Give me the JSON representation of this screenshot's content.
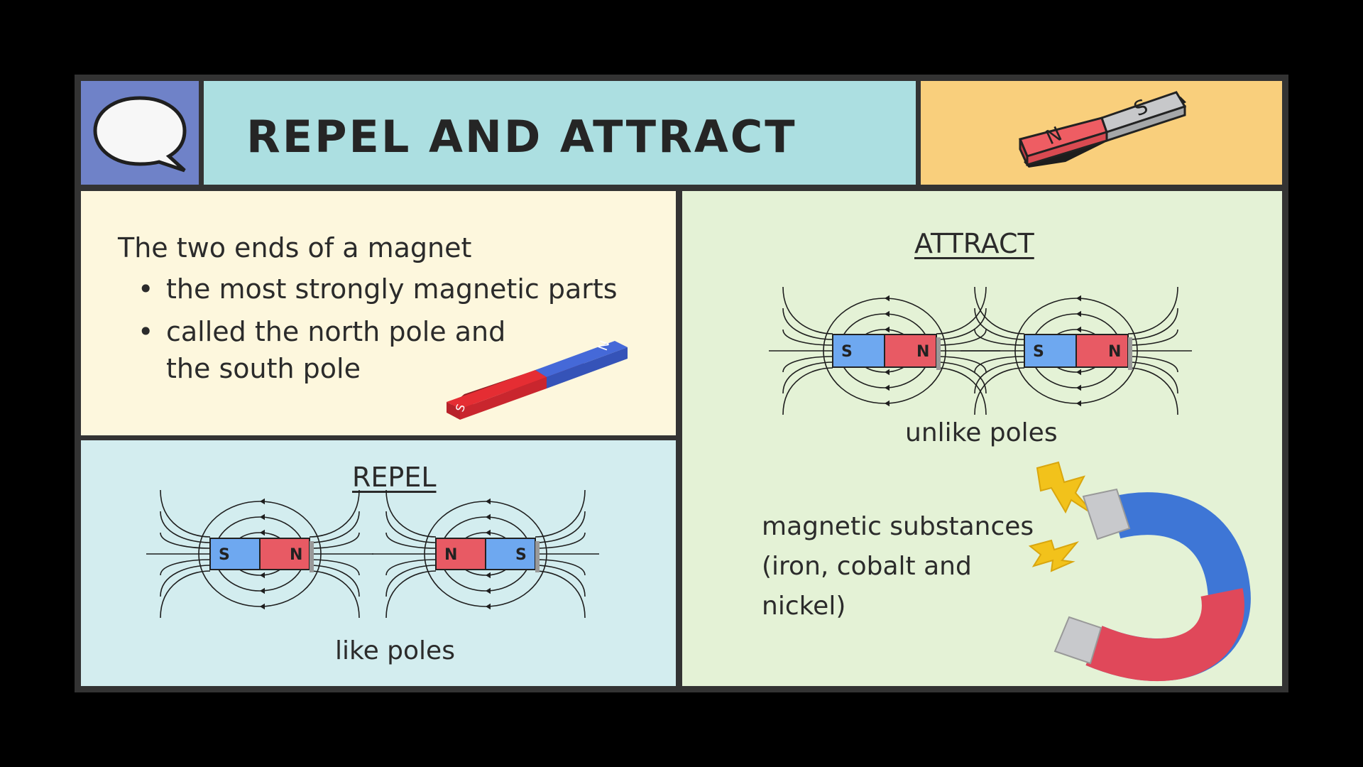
{
  "title": "REPEL AND ATTRACT",
  "intro": {
    "lead": "The two ends of a magnet",
    "bullets": [
      "the most strongly magnetic parts",
      "called the north pole and\nthe south pole"
    ]
  },
  "repel": {
    "heading": "REPEL",
    "caption": "like poles",
    "magnets": [
      {
        "left": "S",
        "right": "N"
      },
      {
        "left": "N",
        "right": "S"
      }
    ]
  },
  "attract": {
    "heading": "ATTRACT",
    "caption": "unlike poles",
    "magnets": [
      {
        "left": "S",
        "right": "N"
      },
      {
        "left": "S",
        "right": "N"
      }
    ],
    "substances": "magnetic substances (iron, cobalt and nickel)"
  },
  "pole_labels": {
    "north": "N",
    "south": "S"
  },
  "colors": {
    "north_pole": "#e85a64",
    "south_pole": "#6ea8f0",
    "bar_red": "#e0252f",
    "bar_blue": "#3e5fd0",
    "icon_panel": "#6f82c8",
    "title_panel": "#acdfe1",
    "header_panel": "#f9cf7c",
    "intro_panel": "#fdf7dd",
    "repel_panel": "#d3edef",
    "attract_panel": "#e4f2d6",
    "lightning": "#f2c21b"
  }
}
